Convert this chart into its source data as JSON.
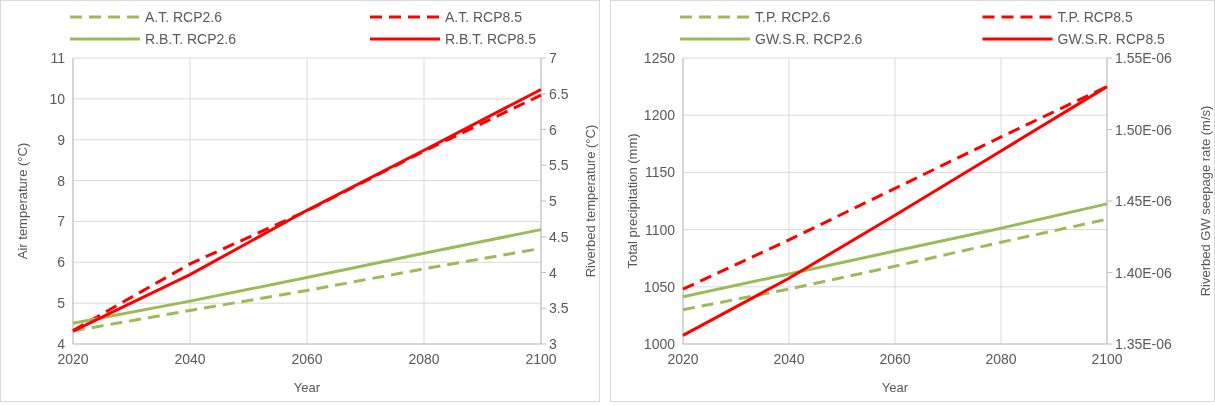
{
  "chart_data": [
    {
      "type": "line",
      "xlabel": "Year",
      "ylabel": "Air temperature (°C)",
      "y2label": "Riverbed temperature (°C)",
      "x": [
        2020,
        2040,
        2060,
        2080,
        2100
      ],
      "xlim": [
        2020,
        2100
      ],
      "xticks": [
        2020,
        2040,
        2060,
        2080,
        2100
      ],
      "ylim": [
        4,
        11
      ],
      "yticks": [
        4,
        5,
        6,
        7,
        8,
        9,
        10,
        11
      ],
      "y2lim": [
        3,
        7
      ],
      "y2ticks": [
        3,
        3.5,
        4,
        4.5,
        5,
        5.5,
        6,
        6.5,
        7
      ],
      "grid": true,
      "legend": "top",
      "series": [
        {
          "name": "A.T. RCP2.6",
          "color": "#9bbb59",
          "line_style": "dashed",
          "values": [
            4.32,
            4.82,
            5.31,
            5.84,
            6.34
          ]
        },
        {
          "name": "A.T. RCP8.5",
          "color": "#ff0000",
          "line_style": "dashed",
          "values": [
            4.33,
            5.96,
            7.26,
            8.72,
            10.09
          ]
        },
        {
          "name": "R.B.T. RCP2.6",
          "color": "#9bbb59",
          "line_style": "solid",
          "axis": "y2",
          "values": [
            3.29,
            3.6,
            3.93,
            4.27,
            4.6
          ]
        },
        {
          "name": "R.B.T. RCP8.5",
          "color": "#ff0000",
          "line_style": "solid",
          "axis": "y2",
          "values": [
            3.18,
            3.97,
            4.87,
            5.71,
            6.56
          ]
        }
      ]
    },
    {
      "type": "line",
      "xlabel": "Year",
      "ylabel": "Total precipitation (mm)",
      "y2label": "Riverbed GW seepage rate (m/s)",
      "x": [
        2020,
        2040,
        2060,
        2080,
        2100
      ],
      "xlim": [
        2020,
        2100
      ],
      "xticks": [
        2020,
        2040,
        2060,
        2080,
        2100
      ],
      "ylim": [
        1000,
        1250
      ],
      "yticks": [
        1000,
        1050,
        1100,
        1150,
        1200,
        1250
      ],
      "y2lim": [
        1.35e-06,
        1.55e-06
      ],
      "y2ticks": [
        {
          "value": 1.35e-06,
          "label": "1.35E-06"
        },
        {
          "value": 1.4e-06,
          "label": "1.40E-06"
        },
        {
          "value": 1.45e-06,
          "label": "1.45E-06"
        },
        {
          "value": 1.5e-06,
          "label": "1.50E-06"
        },
        {
          "value": 1.55e-06,
          "label": "1.55E-06"
        }
      ],
      "grid": true,
      "legend": "top",
      "series": [
        {
          "name": "T.P. RCP2.6",
          "color": "#9bbb59",
          "line_style": "dashed",
          "values": [
            1030,
            1048,
            1068,
            1089,
            1109
          ]
        },
        {
          "name": "T.P. RCP8.5",
          "color": "#ff0000",
          "line_style": "dashed",
          "values": [
            1048,
            1091,
            1136,
            1181,
            1225
          ]
        },
        {
          "name": "GW.S.R. RCP2.6",
          "color": "#9bbb59",
          "line_style": "solid",
          "axis": "y2",
          "values": [
            1.383e-06,
            1.399e-06,
            1.415e-06,
            1.431e-06,
            1.448e-06
          ]
        },
        {
          "name": "GW.S.R. RCP8.5",
          "color": "#ff0000",
          "line_style": "solid",
          "axis": "y2",
          "values": [
            1.356e-06,
            1.396e-06,
            1.44e-06,
            1.485e-06,
            1.53e-06
          ]
        }
      ]
    }
  ]
}
